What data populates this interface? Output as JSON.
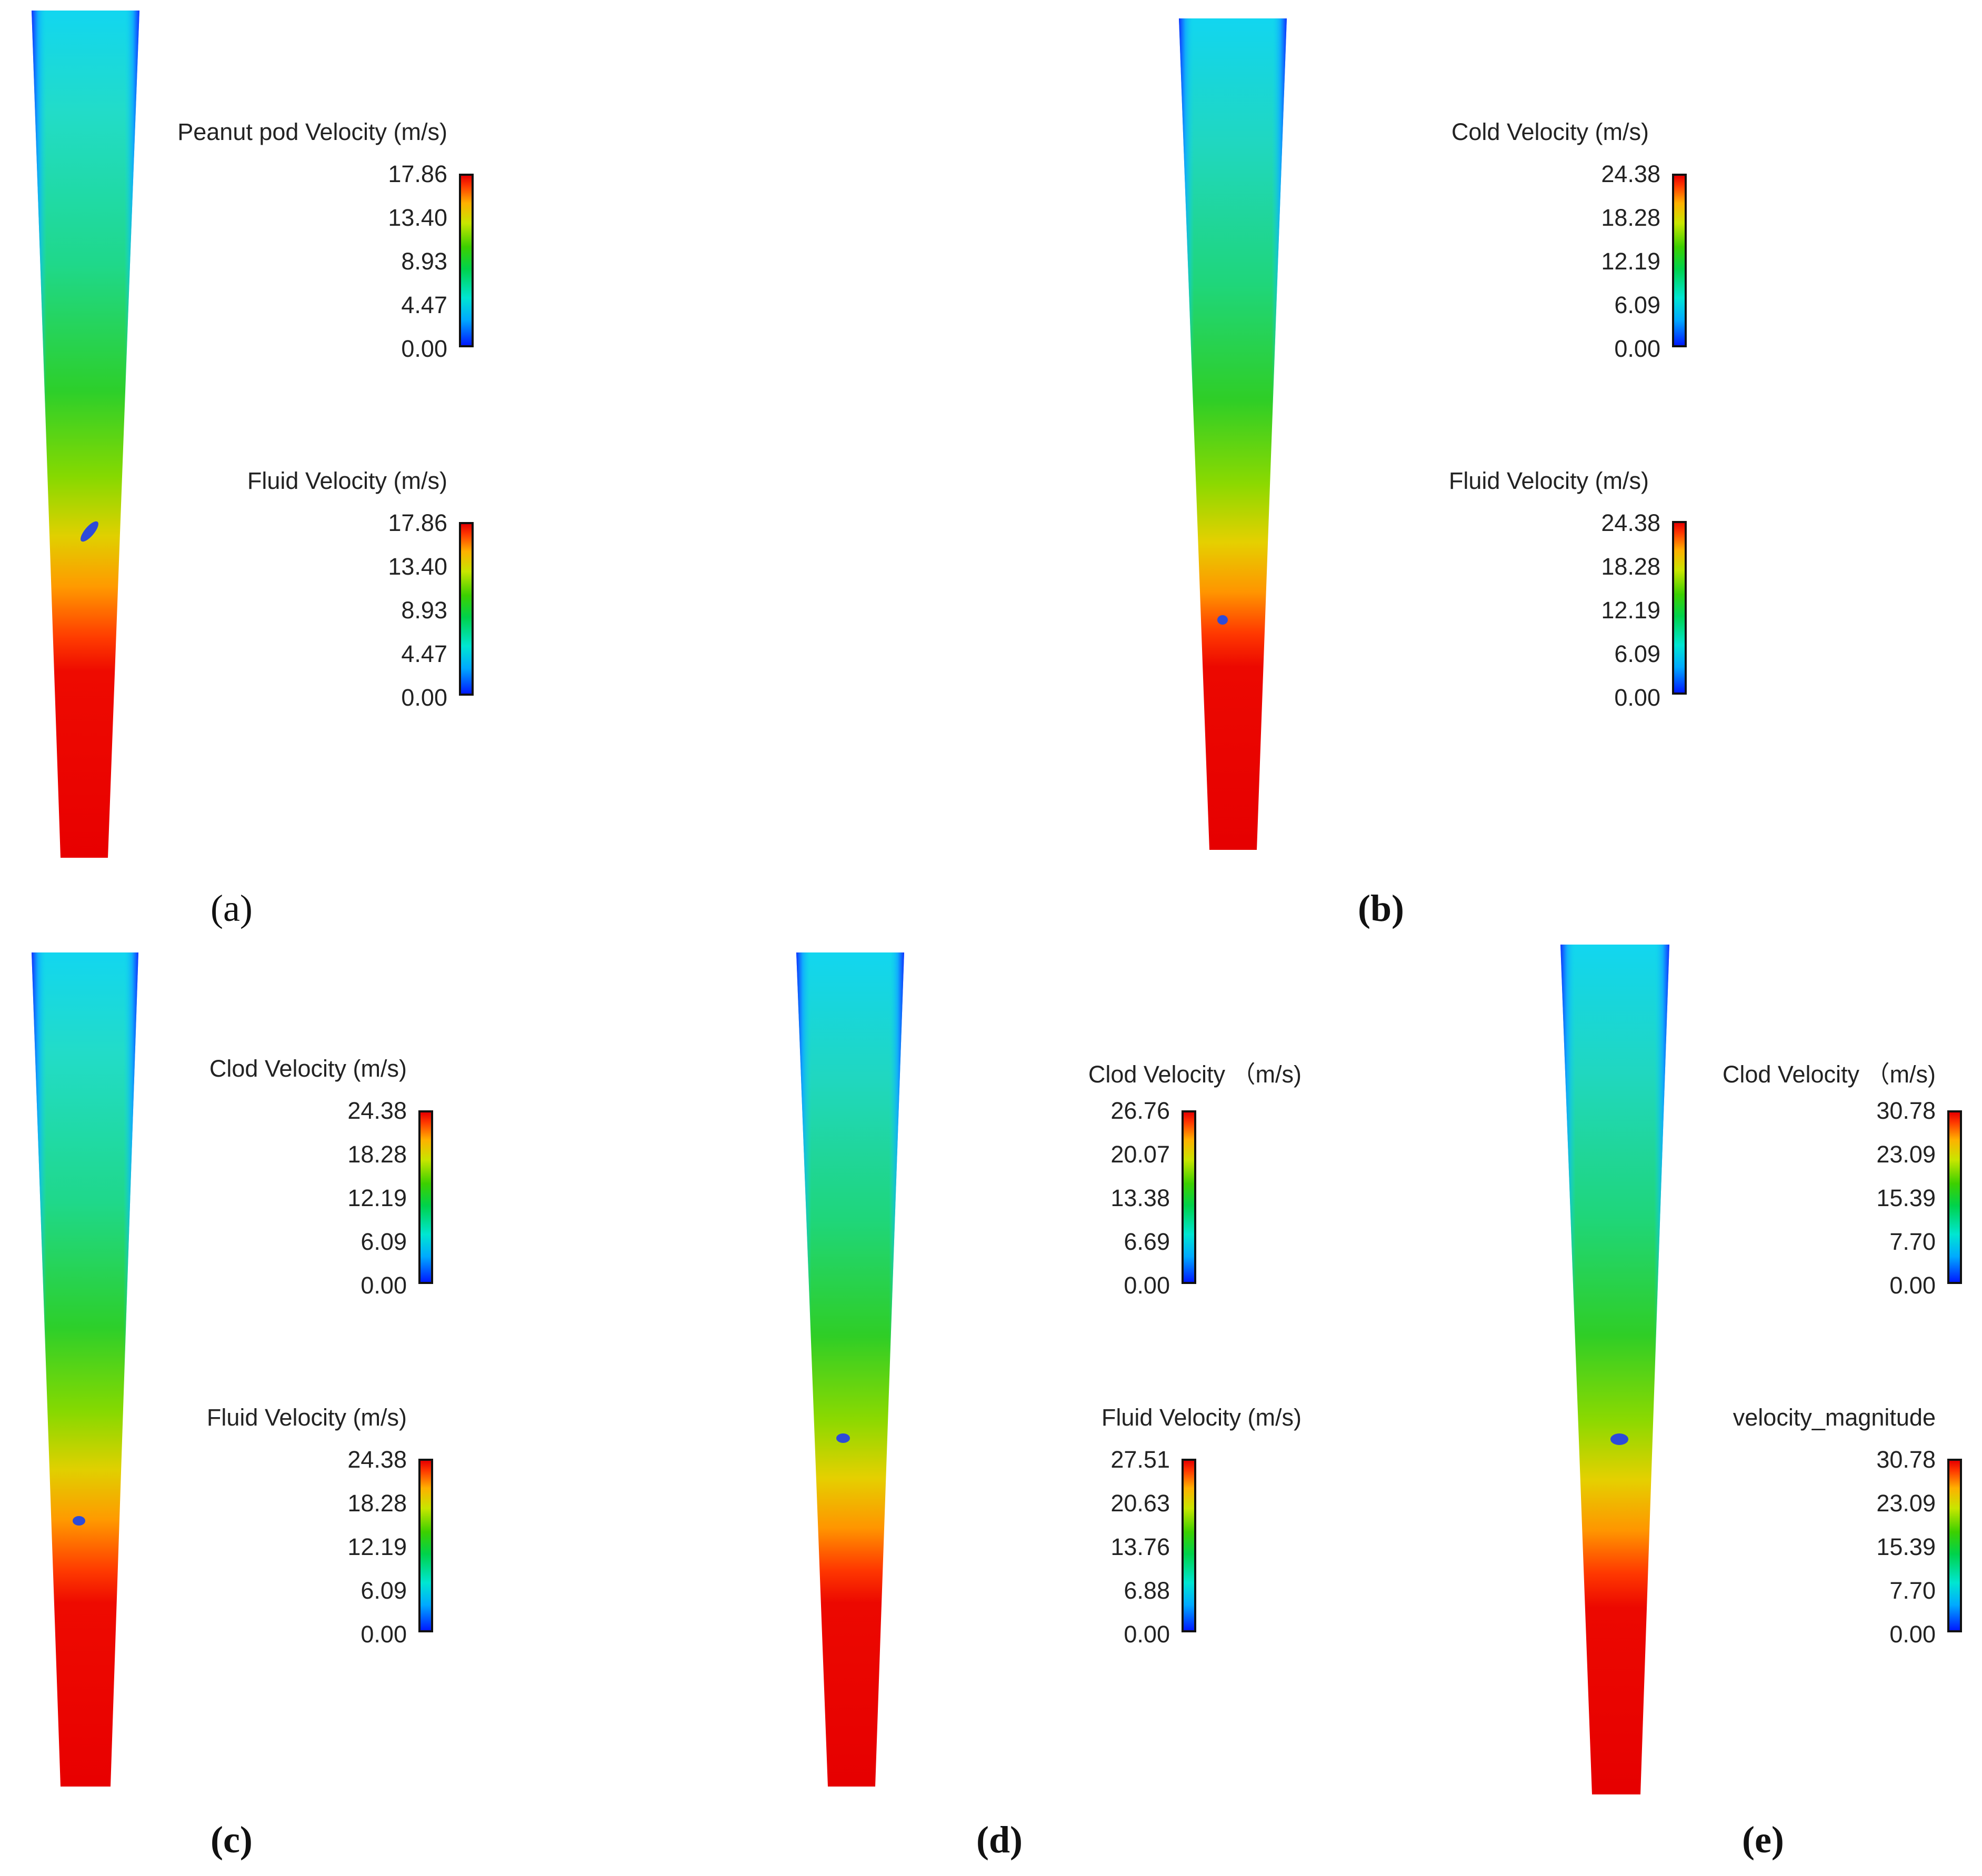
{
  "panels": [
    {
      "id": "a",
      "caption": "(a)",
      "legend1": {
        "title": "Peanut pod Velocity (m/s)",
        "ticks": [
          "17.86",
          "13.40",
          "8.93",
          "4.47",
          "0.00"
        ]
      },
      "legend2": {
        "title": "Fluid Velocity (m/s)",
        "ticks": [
          "17.86",
          "13.40",
          "8.93",
          "4.47",
          "0.00"
        ]
      }
    },
    {
      "id": "b",
      "caption": "(b)",
      "legend1": {
        "title": "Cold Velocity (m/s)",
        "ticks": [
          "24.38",
          "18.28",
          "12.19",
          "6.09",
          "0.00"
        ]
      },
      "legend2": {
        "title": "Fluid Velocity (m/s)",
        "ticks": [
          "24.38",
          "18.28",
          "12.19",
          "6.09",
          "0.00"
        ]
      }
    },
    {
      "id": "c",
      "caption": "(c)",
      "legend1": {
        "title": "Clod Velocity (m/s)",
        "ticks": [
          "24.38",
          "18.28",
          "12.19",
          "6.09",
          "0.00"
        ]
      },
      "legend2": {
        "title": "Fluid Velocity (m/s)",
        "ticks": [
          "24.38",
          "18.28",
          "12.19",
          "6.09",
          "0.00"
        ]
      }
    },
    {
      "id": "d",
      "caption": "(d)",
      "legend1": {
        "title": "Clod Velocity （m/s)",
        "ticks": [
          "26.76",
          "20.07",
          "13.38",
          "6.69",
          "0.00"
        ]
      },
      "legend2": {
        "title": "Fluid Velocity (m/s)",
        "ticks": [
          "27.51",
          "20.63",
          "13.76",
          "6.88",
          "0.00"
        ]
      }
    },
    {
      "id": "e",
      "caption": "(e)",
      "legend1": {
        "title": "Clod Velocity （m/s)",
        "ticks": [
          "30.78",
          "23.09",
          "15.39",
          "7.70",
          "0.00"
        ]
      },
      "legend2": {
        "title": "velocity_magnitude",
        "ticks": [
          "30.78",
          "23.09",
          "15.39",
          "7.70",
          "0.00"
        ]
      }
    }
  ],
  "colors": {
    "wall": "#1a3cff",
    "particle": "#2d4bd8"
  }
}
